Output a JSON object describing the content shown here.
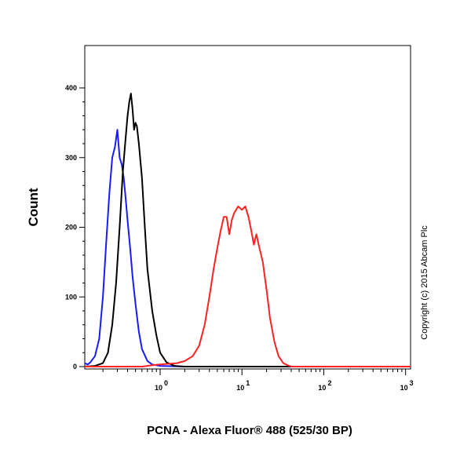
{
  "chart_data": {
    "type": "line",
    "xlabel": "PCNA - Alexa Fluor® 488 (525/30 BP)",
    "ylabel": "Count",
    "x_scale": "log",
    "xlim": [
      0.12,
      1150
    ],
    "ylim": [
      0,
      400
    ],
    "y_ticks": [
      "0",
      "100",
      "200",
      "300",
      "400"
    ],
    "x_ticks": [
      {
        "base": "10",
        "exp": "0",
        "value": 1
      },
      {
        "base": "10",
        "exp": "1",
        "value": 10
      },
      {
        "base": "10",
        "exp": "2",
        "value": 100
      },
      {
        "base": "10",
        "exp": "3",
        "value": 1000
      }
    ],
    "grid": false,
    "legend": "none",
    "series": [
      {
        "color": "#1a1aff",
        "points": [
          [
            0.12,
            5
          ],
          [
            0.13,
            3
          ],
          [
            0.14,
            6
          ],
          [
            0.16,
            15
          ],
          [
            0.18,
            40
          ],
          [
            0.2,
            100
          ],
          [
            0.22,
            180
          ],
          [
            0.24,
            250
          ],
          [
            0.26,
            300
          ],
          [
            0.28,
            315
          ],
          [
            0.3,
            340
          ],
          [
            0.32,
            300
          ],
          [
            0.34,
            290
          ],
          [
            0.36,
            270
          ],
          [
            0.38,
            240
          ],
          [
            0.4,
            210
          ],
          [
            0.43,
            170
          ],
          [
            0.46,
            130
          ],
          [
            0.5,
            90
          ],
          [
            0.55,
            50
          ],
          [
            0.6,
            25
          ],
          [
            0.7,
            8
          ],
          [
            0.8,
            3
          ],
          [
            1.0,
            1
          ],
          [
            2.0,
            0
          ],
          [
            1150,
            0
          ]
        ]
      },
      {
        "color": "#000000",
        "points": [
          [
            0.12,
            0
          ],
          [
            0.16,
            1
          ],
          [
            0.2,
            5
          ],
          [
            0.23,
            20
          ],
          [
            0.26,
            60
          ],
          [
            0.29,
            120
          ],
          [
            0.32,
            200
          ],
          [
            0.35,
            280
          ],
          [
            0.38,
            330
          ],
          [
            0.4,
            360
          ],
          [
            0.42,
            380
          ],
          [
            0.44,
            392
          ],
          [
            0.46,
            370
          ],
          [
            0.48,
            340
          ],
          [
            0.5,
            350
          ],
          [
            0.52,
            345
          ],
          [
            0.55,
            320
          ],
          [
            0.6,
            270
          ],
          [
            0.65,
            200
          ],
          [
            0.7,
            140
          ],
          [
            0.8,
            80
          ],
          [
            0.9,
            45
          ],
          [
            1.0,
            20
          ],
          [
            1.2,
            6
          ],
          [
            1.5,
            1
          ],
          [
            2.0,
            0
          ],
          [
            1150,
            0
          ]
        ]
      },
      {
        "color": "#ff2222",
        "points": [
          [
            0.12,
            0
          ],
          [
            0.6,
            0
          ],
          [
            0.8,
            2
          ],
          [
            1.0,
            3
          ],
          [
            1.3,
            4
          ],
          [
            1.6,
            5
          ],
          [
            2.0,
            8
          ],
          [
            2.5,
            15
          ],
          [
            3.0,
            30
          ],
          [
            3.5,
            60
          ],
          [
            4.0,
            100
          ],
          [
            4.5,
            140
          ],
          [
            5.0,
            170
          ],
          [
            5.5,
            195
          ],
          [
            6.0,
            215
          ],
          [
            6.5,
            215
          ],
          [
            7.0,
            190
          ],
          [
            7.5,
            210
          ],
          [
            8.0,
            220
          ],
          [
            9.0,
            230
          ],
          [
            10.0,
            225
          ],
          [
            11.0,
            230
          ],
          [
            12.0,
            215
          ],
          [
            13.0,
            195
          ],
          [
            14.0,
            175
          ],
          [
            15.0,
            190
          ],
          [
            16.0,
            175
          ],
          [
            18.0,
            150
          ],
          [
            20.0,
            110
          ],
          [
            22.0,
            70
          ],
          [
            25.0,
            35
          ],
          [
            28.0,
            15
          ],
          [
            32.0,
            5
          ],
          [
            36.0,
            2
          ],
          [
            40.0,
            0
          ],
          [
            1150,
            0
          ]
        ]
      }
    ]
  },
  "copyright": "Copyright (c) 2015 Abcam Plc"
}
